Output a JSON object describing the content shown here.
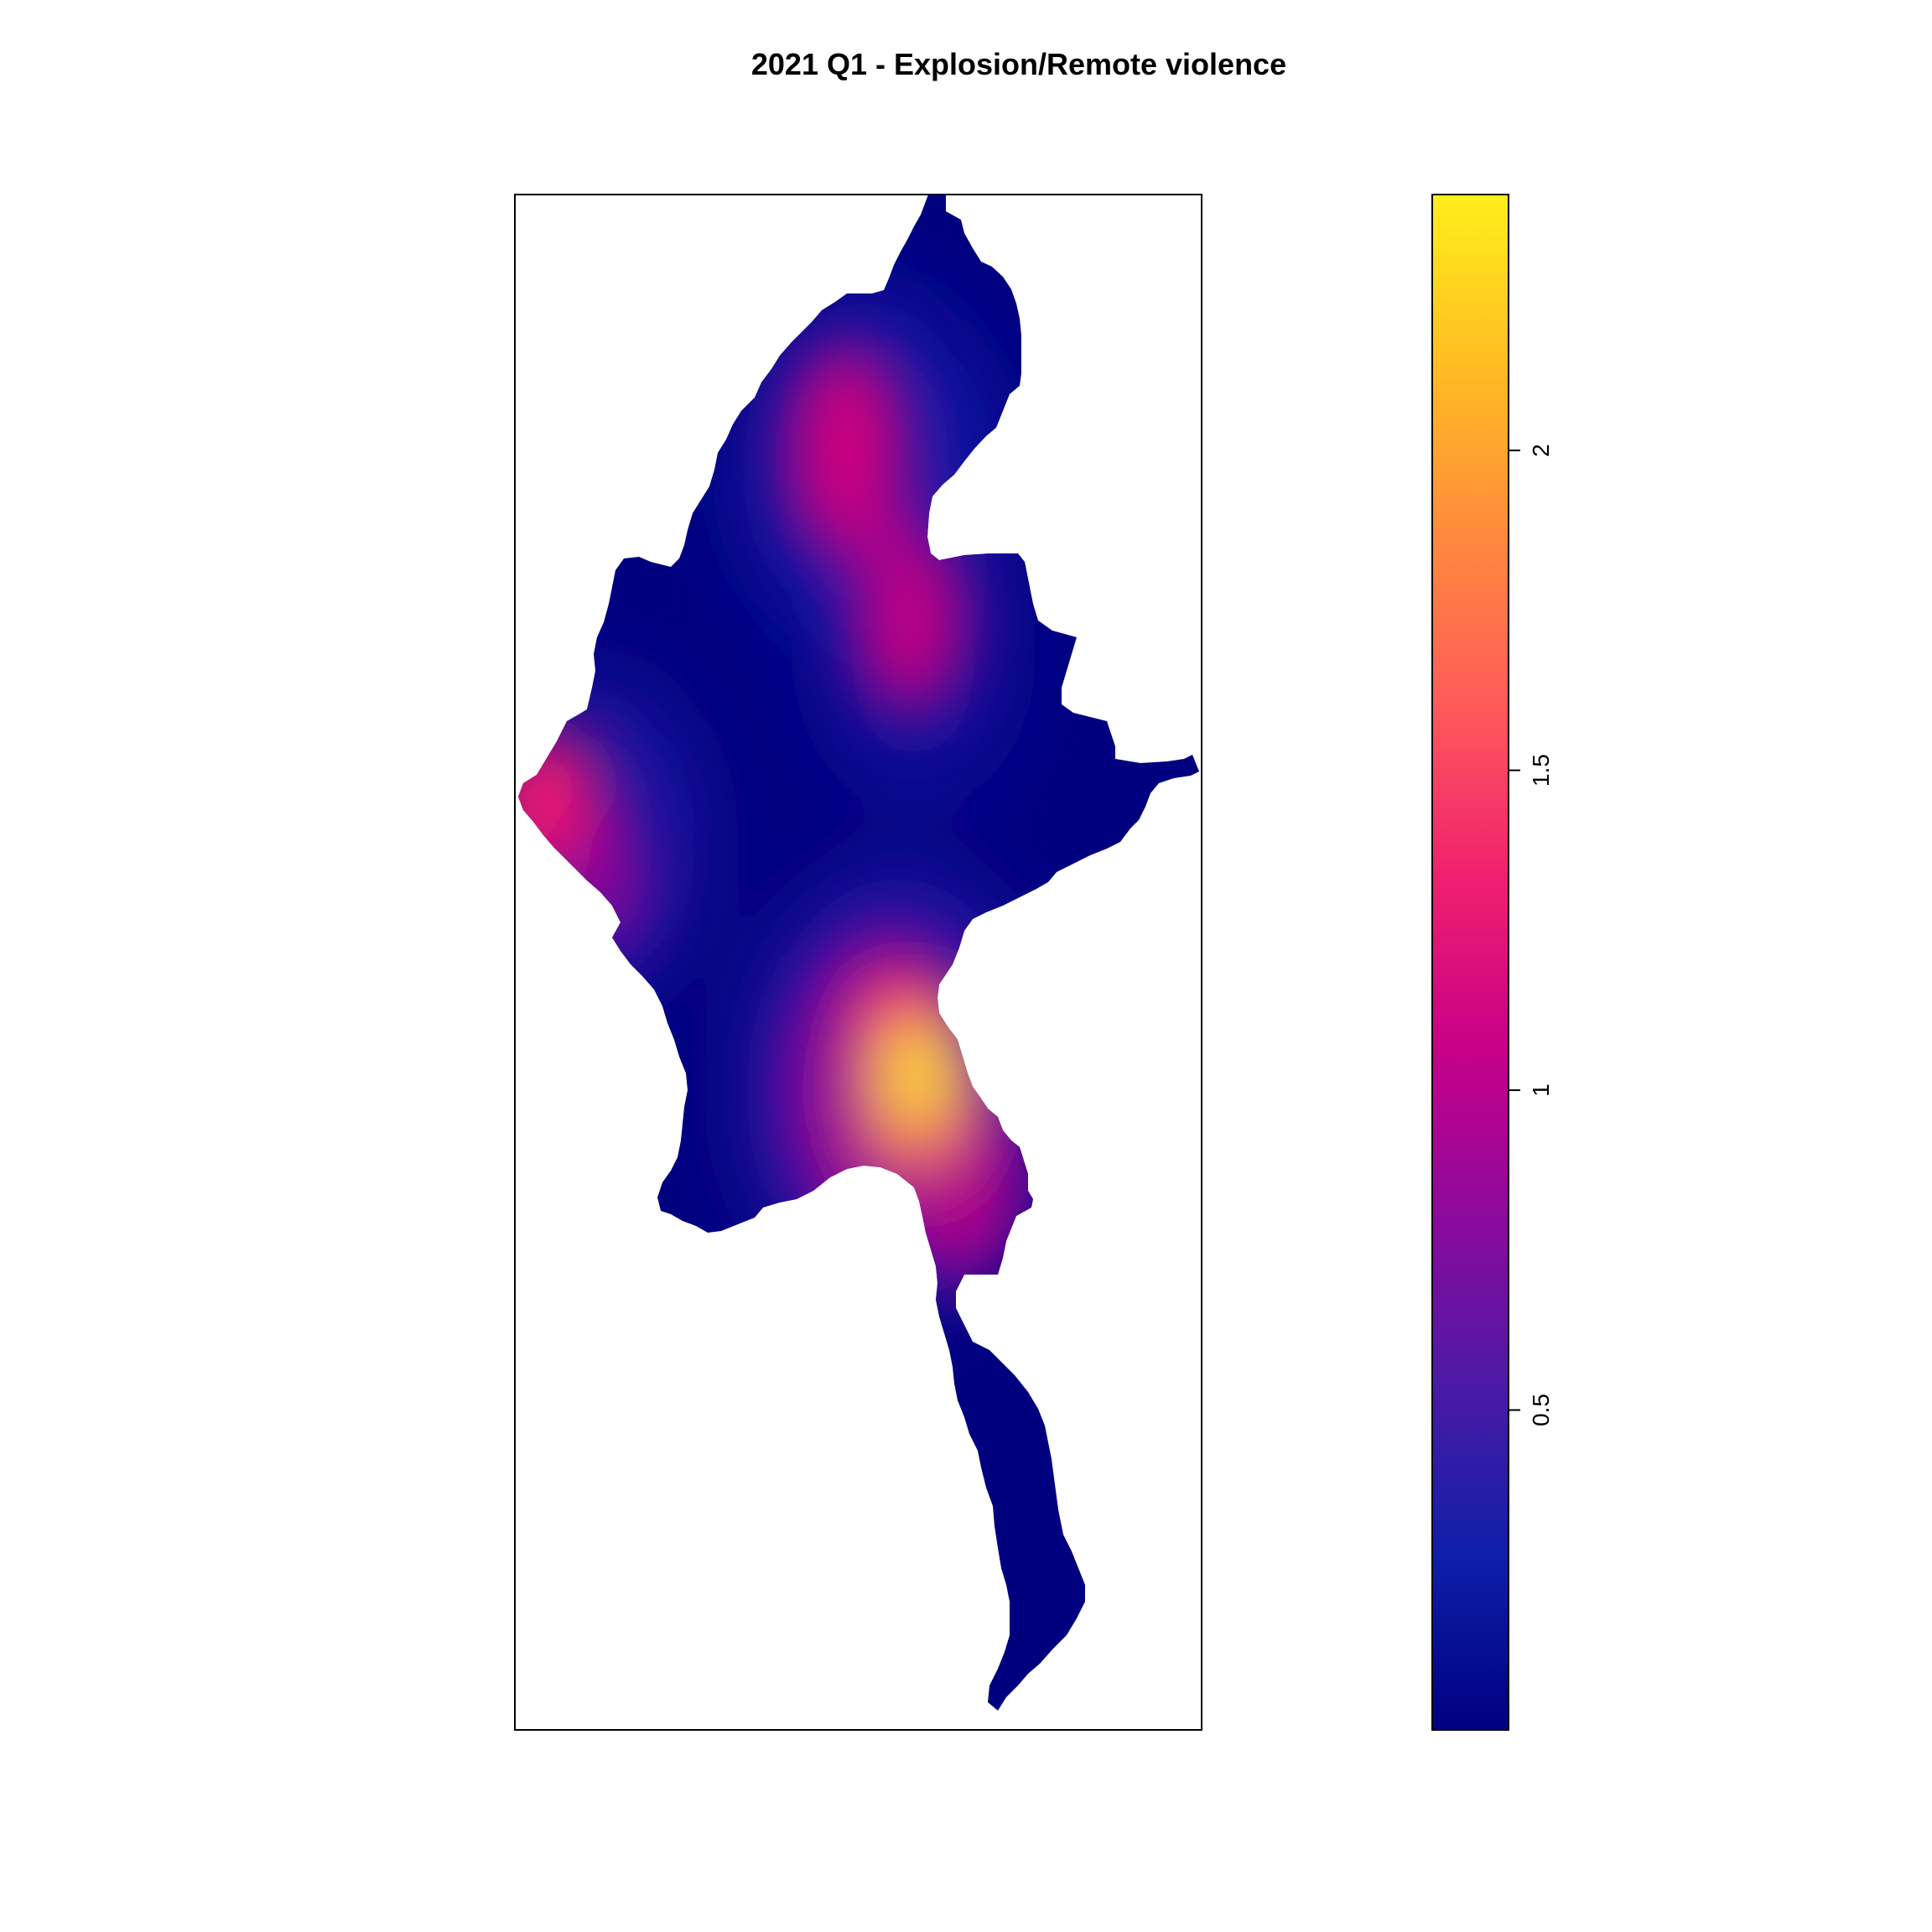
{
  "title": "2021 Q1 - Explosion/Remote violence",
  "legend": {
    "type": "continuous-colorbar",
    "min": 0.0,
    "max": 2.4,
    "ticks": [
      {
        "value": 0.5,
        "label": "0.5"
      },
      {
        "value": 1.0,
        "label": "1"
      },
      {
        "value": 1.5,
        "label": "1.5"
      },
      {
        "value": 2.0,
        "label": "2"
      }
    ],
    "colors": [
      "#000080",
      "#0d1fa8",
      "#4a1aa6",
      "#8c0a9b",
      "#c80088",
      "#f0206e",
      "#ff5a5a",
      "#ff8a3d",
      "#ffbd22",
      "#ffef1c"
    ]
  },
  "chart_data": {
    "type": "heatmap",
    "title": "2021 Q1 - Explosion/Remote violence",
    "region_shape": "Myanmar",
    "color_range": [
      0,
      2.4
    ],
    "hotspots": [
      {
        "name": "",
        "value": 2.35
      },
      {
        "name": "",
        "value": 1.3
      },
      {
        "name": "",
        "value": 1.1
      },
      {
        "name": "",
        "value": 1.0
      }
    ]
  }
}
